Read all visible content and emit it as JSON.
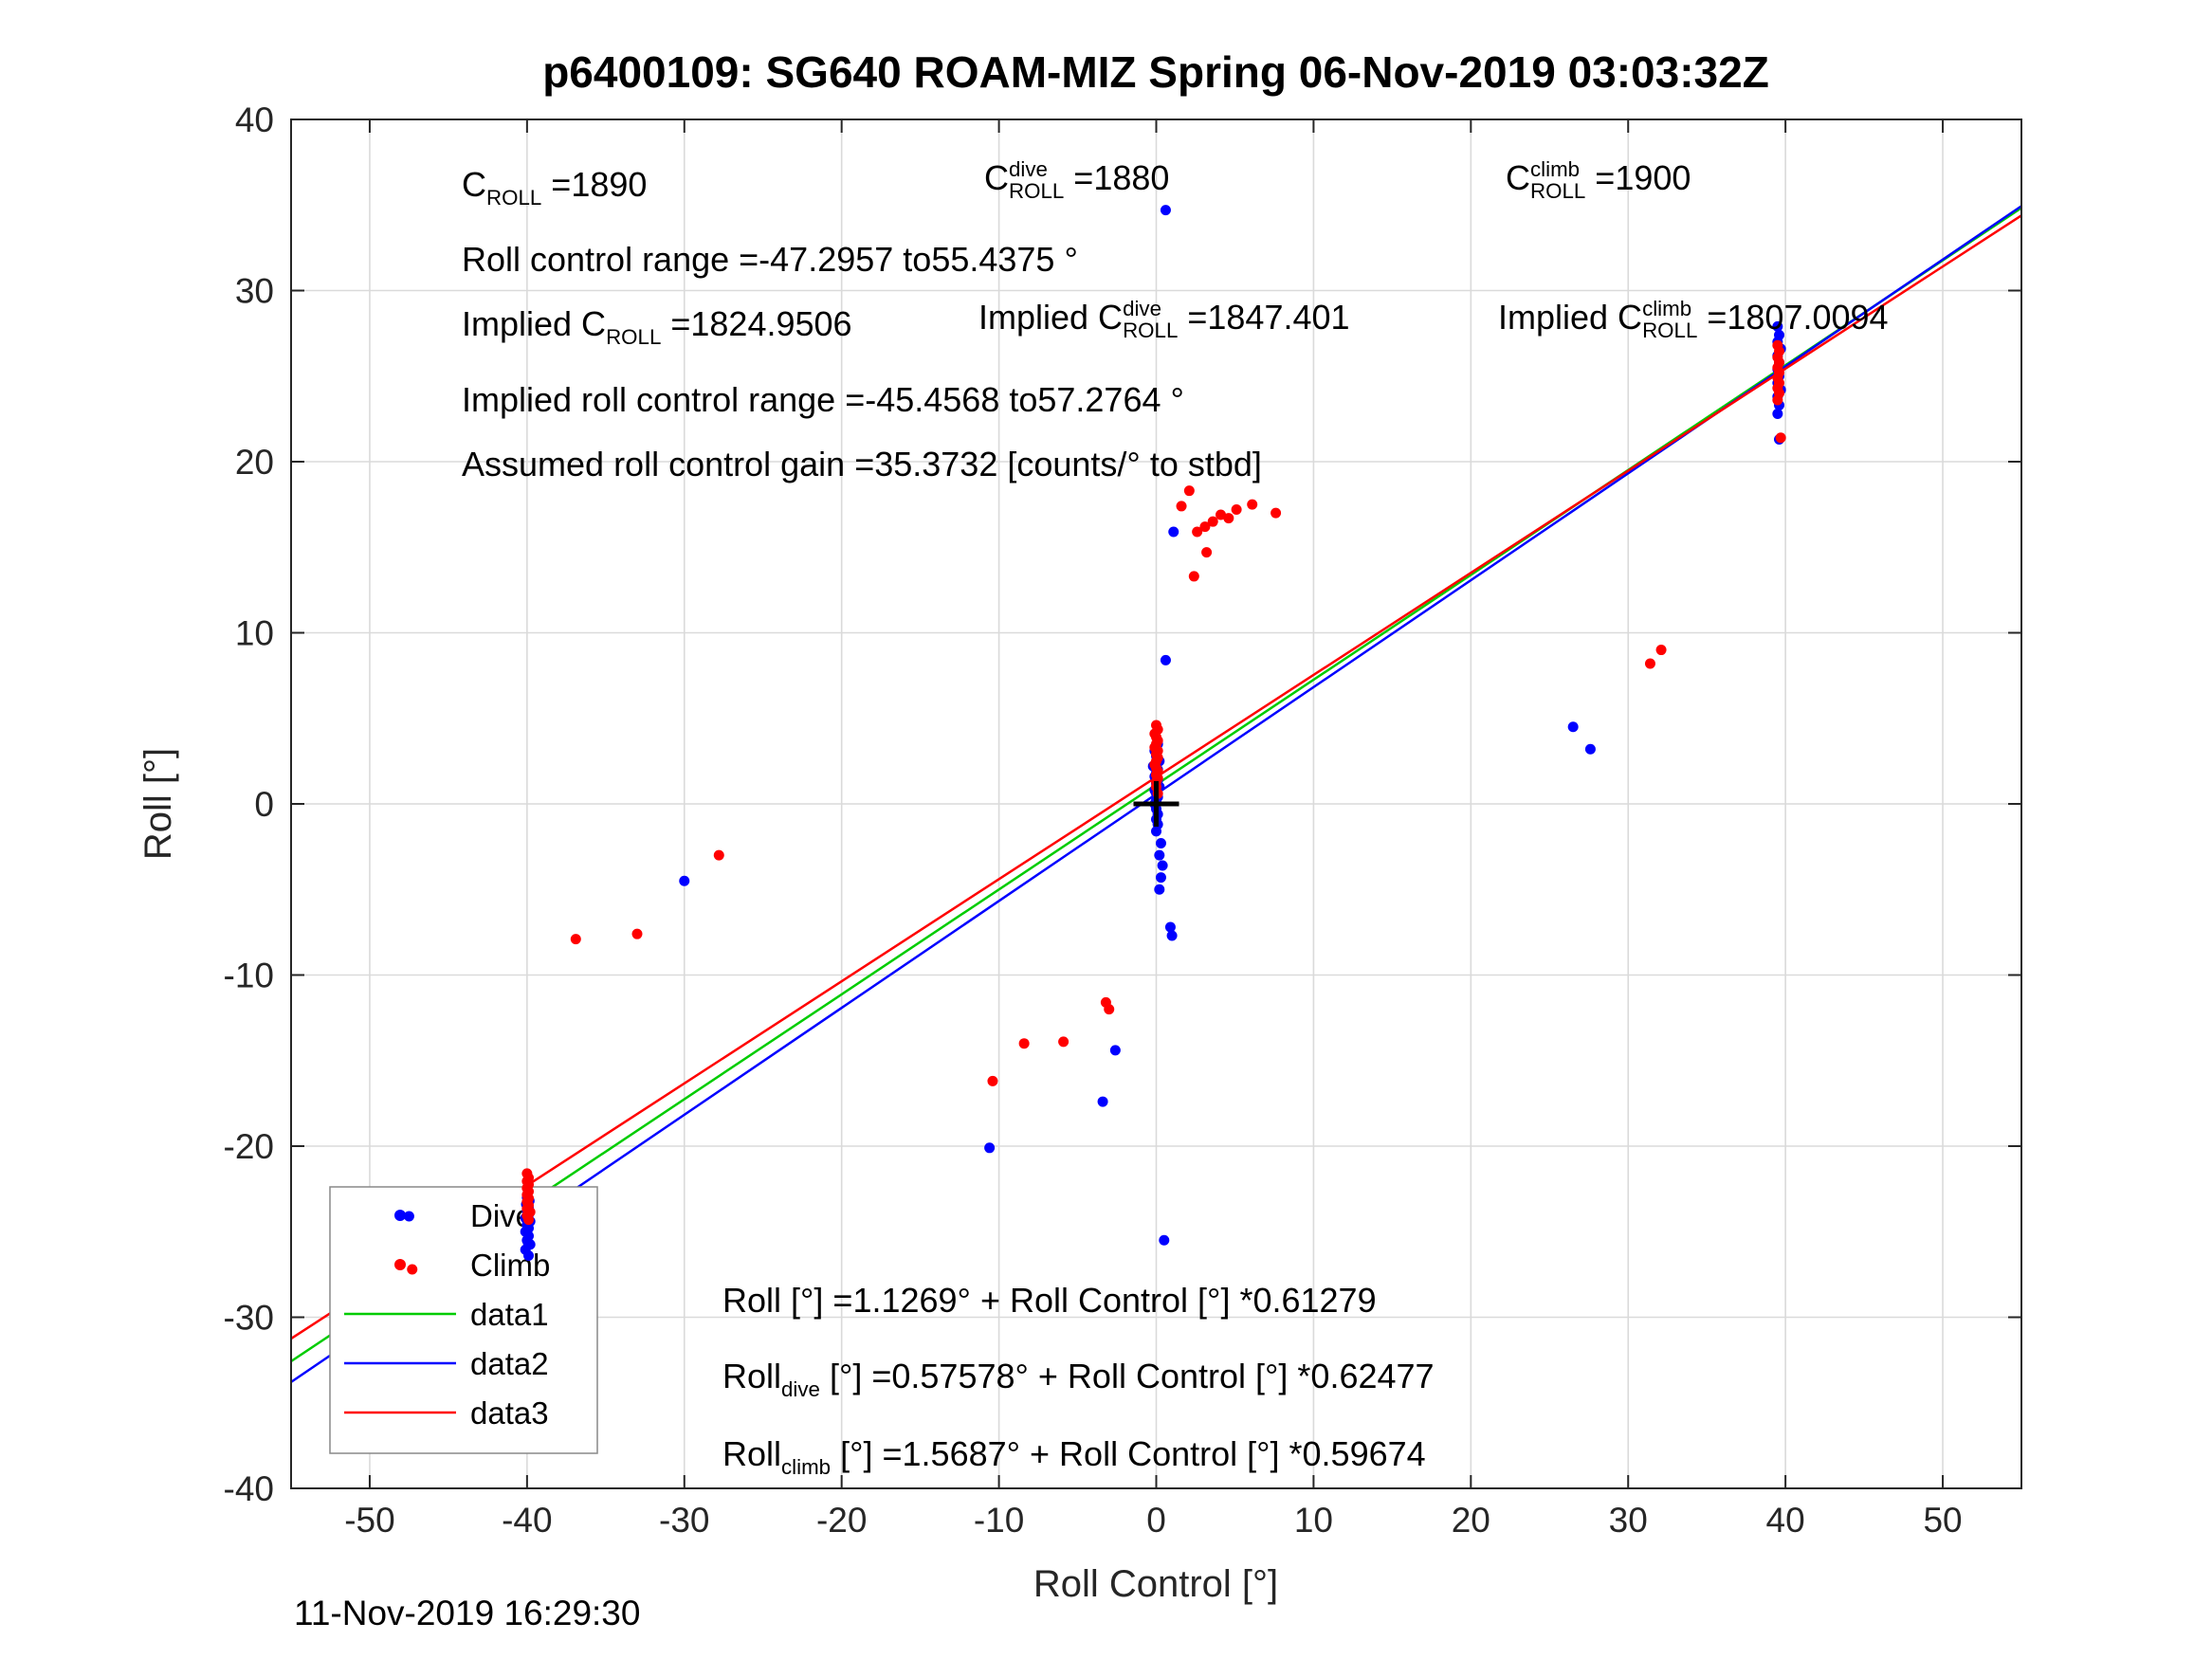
{
  "timestamp": "11-Nov-2019 16:29:30",
  "chart_data": {
    "type": "scatter",
    "title": "p6400109: SG640 ROAM-MIZ Spring 06-Nov-2019 03:03:32Z",
    "xlabel": "Roll Control [°]",
    "ylabel": "Roll [°]",
    "xlim": [
      -55,
      55
    ],
    "ylim": [
      -40,
      40
    ],
    "xticks": [
      -50,
      -40,
      -30,
      -20,
      -10,
      0,
      10,
      20,
      30,
      40,
      50
    ],
    "yticks": [
      -40,
      -30,
      -20,
      -10,
      0,
      10,
      20,
      30,
      40
    ],
    "grid": true,
    "legend_position": "southwest",
    "colors": {
      "dive": "#0000ff",
      "climb": "#ff0000",
      "data1": "#00cc00",
      "data2": "#0000ff",
      "data3": "#ff0000",
      "origin": "#000000"
    },
    "fit_lines": [
      {
        "name": "data1",
        "intercept": 1.1269,
        "slope": 0.61279,
        "color_key": "data1"
      },
      {
        "name": "data2",
        "intercept": 0.57578,
        "slope": 0.62477,
        "color_key": "data2"
      },
      {
        "name": "data3",
        "intercept": 1.5687,
        "slope": 0.59674,
        "color_key": "data3"
      }
    ],
    "origin_marker": {
      "x": 0,
      "y": 0,
      "shape": "plus"
    },
    "legend": {
      "entries": [
        {
          "label": "Dive",
          "type": "marker",
          "color_key": "dive"
        },
        {
          "label": "Climb",
          "type": "marker",
          "color_key": "climb"
        },
        {
          "label": "data1",
          "type": "line",
          "color_key": "data1"
        },
        {
          "label": "data2",
          "type": "line",
          "color_key": "data2"
        },
        {
          "label": "data3",
          "type": "line",
          "color_key": "data3"
        }
      ]
    },
    "series": [
      {
        "name": "Dive",
        "color_key": "dive",
        "points": [
          [
            -39.9,
            -26.4
          ],
          [
            -40.1,
            -26.05
          ],
          [
            -39.8,
            -25.75
          ],
          [
            -40.0,
            -25.5
          ],
          [
            -39.9,
            -25.25
          ],
          [
            -40.1,
            -25.0
          ],
          [
            -39.9,
            -24.8
          ],
          [
            -40.0,
            -24.6
          ],
          [
            -39.8,
            -24.4
          ],
          [
            -40.1,
            -24.2
          ],
          [
            -39.9,
            -24.0
          ],
          [
            -40.0,
            -23.8
          ],
          [
            -39.9,
            -23.6
          ],
          [
            -40.05,
            -23.4
          ],
          [
            -39.85,
            -23.2
          ],
          [
            -40.0,
            -23.0
          ],
          [
            -39.95,
            -25.6
          ],
          [
            -40.0,
            -24.9
          ],
          [
            -47.5,
            -24.1
          ],
          [
            -30.0,
            -4.5
          ],
          [
            0.1,
            3.5
          ],
          [
            -0.1,
            3.1
          ],
          [
            0.0,
            2.8
          ],
          [
            0.2,
            2.5
          ],
          [
            -0.2,
            2.2
          ],
          [
            0.1,
            2.0
          ],
          [
            0.0,
            1.8
          ],
          [
            -0.1,
            1.6
          ],
          [
            0.1,
            1.4
          ],
          [
            0.0,
            1.2
          ],
          [
            0.2,
            1.0
          ],
          [
            -0.1,
            0.8
          ],
          [
            0.0,
            0.6
          ],
          [
            0.1,
            0.4
          ],
          [
            0.0,
            0.2
          ],
          [
            -0.1,
            0.0
          ],
          [
            0.0,
            -0.3
          ],
          [
            0.1,
            -0.6
          ],
          [
            0.0,
            -0.9
          ],
          [
            0.1,
            -1.2
          ],
          [
            0.0,
            -1.6
          ],
          [
            0.3,
            -2.3
          ],
          [
            0.2,
            -3.0
          ],
          [
            0.4,
            -3.6
          ],
          [
            0.3,
            -4.3
          ],
          [
            0.2,
            -5.0
          ],
          [
            0.9,
            -7.2
          ],
          [
            1.0,
            -7.7
          ],
          [
            0.6,
            8.4
          ],
          [
            0.6,
            34.7
          ],
          [
            0.5,
            -25.5
          ],
          [
            1.1,
            15.9
          ],
          [
            -2.6,
            -14.4
          ],
          [
            -3.4,
            -17.4
          ],
          [
            -10.6,
            -20.1
          ],
          [
            26.5,
            4.5
          ],
          [
            27.6,
            3.2
          ],
          [
            39.5,
            27.9
          ],
          [
            39.6,
            27.4
          ],
          [
            39.5,
            27.0
          ],
          [
            39.7,
            26.6
          ],
          [
            39.5,
            26.2
          ],
          [
            39.6,
            25.8
          ],
          [
            39.5,
            25.4
          ],
          [
            39.6,
            25.0
          ],
          [
            39.5,
            24.6
          ],
          [
            39.7,
            24.2
          ],
          [
            39.5,
            23.8
          ],
          [
            39.6,
            23.3
          ],
          [
            39.5,
            22.8
          ],
          [
            39.6,
            21.3
          ]
        ]
      },
      {
        "name": "Climb",
        "color_key": "climb",
        "points": [
          [
            -39.9,
            -24.3
          ],
          [
            -40.0,
            -24.05
          ],
          [
            -39.8,
            -23.85
          ],
          [
            -40.0,
            -23.65
          ],
          [
            -39.9,
            -23.45
          ],
          [
            -40.0,
            -23.25
          ],
          [
            -39.9,
            -23.05
          ],
          [
            -40.0,
            -22.85
          ],
          [
            -39.9,
            -22.65
          ],
          [
            -40.0,
            -22.45
          ],
          [
            -39.9,
            -22.25
          ],
          [
            -40.0,
            -22.05
          ],
          [
            -39.9,
            -21.85
          ],
          [
            -40.0,
            -21.6
          ],
          [
            -47.3,
            -27.2
          ],
          [
            -36.9,
            -7.9
          ],
          [
            -33.0,
            -7.6
          ],
          [
            -27.8,
            -3.0
          ],
          [
            -10.4,
            -16.2
          ],
          [
            -8.4,
            -14.0
          ],
          [
            -5.9,
            -13.9
          ],
          [
            -3.0,
            -12.0
          ],
          [
            -3.2,
            -11.6
          ],
          [
            0.0,
            4.6
          ],
          [
            0.1,
            4.35
          ],
          [
            -0.1,
            4.1
          ],
          [
            0.0,
            3.9
          ],
          [
            0.1,
            3.7
          ],
          [
            0.0,
            3.5
          ],
          [
            -0.1,
            3.3
          ],
          [
            0.1,
            3.1
          ],
          [
            0.0,
            2.9
          ],
          [
            0.1,
            2.7
          ],
          [
            0.0,
            2.5
          ],
          [
            -0.1,
            2.3
          ],
          [
            0.0,
            2.1
          ],
          [
            0.1,
            1.9
          ],
          [
            0.0,
            1.7
          ],
          [
            0.1,
            1.5
          ],
          [
            0.0,
            1.3
          ],
          [
            0.0,
            1.0
          ],
          [
            0.1,
            0.6
          ],
          [
            1.6,
            17.4
          ],
          [
            2.1,
            18.3
          ],
          [
            2.6,
            15.9
          ],
          [
            3.1,
            16.2
          ],
          [
            3.6,
            16.5
          ],
          [
            4.1,
            16.9
          ],
          [
            4.6,
            16.7
          ],
          [
            5.1,
            17.2
          ],
          [
            6.1,
            17.5
          ],
          [
            7.6,
            17.0
          ],
          [
            3.2,
            14.7
          ],
          [
            2.4,
            13.3
          ],
          [
            31.4,
            8.2
          ],
          [
            32.1,
            9.0
          ],
          [
            39.5,
            26.8
          ],
          [
            39.6,
            26.45
          ],
          [
            39.5,
            26.1
          ],
          [
            39.6,
            25.8
          ],
          [
            39.5,
            25.5
          ],
          [
            39.6,
            25.2
          ],
          [
            39.5,
            24.9
          ],
          [
            39.6,
            24.6
          ],
          [
            39.5,
            24.3
          ],
          [
            39.6,
            24.0
          ],
          [
            39.5,
            23.6
          ],
          [
            39.7,
            21.4
          ]
        ]
      }
    ],
    "annotations": [
      {
        "name": "annotation-c-roll",
        "x": 487,
        "y": 174,
        "parts": [
          {
            "t": "C"
          },
          {
            "sub": "ROLL"
          },
          {
            "t": " =1890"
          }
        ]
      },
      {
        "name": "annotation-c-roll-dive",
        "x": 1038,
        "y": 167,
        "parts": [
          {
            "t": "C"
          },
          {
            "sub": "ROLL",
            "sup": "dive"
          },
          {
            "t": " =1880"
          }
        ]
      },
      {
        "name": "annotation-c-roll-climb",
        "x": 1588,
        "y": 167,
        "parts": [
          {
            "t": "C"
          },
          {
            "sub": "ROLL",
            "sup": "climb"
          },
          {
            "t": " =1900"
          }
        ]
      },
      {
        "name": "annotation-roll-control-range",
        "x": 487,
        "y": 253,
        "parts": [
          {
            "t": "Roll control range =-47.2957 to55.4375 °"
          }
        ]
      },
      {
        "name": "annotation-implied-c-roll",
        "x": 487,
        "y": 321,
        "parts": [
          {
            "t": "Implied C"
          },
          {
            "sub": "ROLL"
          },
          {
            "t": " =1824.9506"
          }
        ]
      },
      {
        "name": "annotation-implied-c-roll-dive",
        "x": 1032,
        "y": 314,
        "parts": [
          {
            "t": "Implied C"
          },
          {
            "sub": "ROLL",
            "sup": "dive"
          },
          {
            "t": " =1847.401"
          }
        ]
      },
      {
        "name": "annotation-implied-c-roll-climb",
        "x": 1580,
        "y": 314,
        "parts": [
          {
            "t": "Implied C"
          },
          {
            "sub": "ROLL",
            "sup": "climb"
          },
          {
            "t": " =1807.0094"
          }
        ]
      },
      {
        "name": "annotation-implied-roll-control-range",
        "x": 487,
        "y": 401,
        "parts": [
          {
            "t": "Implied roll control range =-45.4568 to57.2764 °"
          }
        ]
      },
      {
        "name": "annotation-assumed-gain",
        "x": 487,
        "y": 469,
        "parts": [
          {
            "t": "Assumed roll control gain =35.3732 [counts/° to stbd]"
          }
        ]
      }
    ],
    "equations": [
      {
        "name": "equation-roll-fit",
        "x": 762,
        "y": 1351,
        "parts": [
          {
            "t": "Roll [°] =1.1269° + Roll Control [°] *0.61279"
          }
        ]
      },
      {
        "name": "equation-roll-dive-fit",
        "x": 762,
        "y": 1431,
        "parts": [
          {
            "t": "Roll"
          },
          {
            "sub": "dive"
          },
          {
            "t": " [°] =0.57578° + Roll Control [°] *0.62477"
          }
        ]
      },
      {
        "name": "equation-roll-climb-fit",
        "x": 762,
        "y": 1513,
        "parts": [
          {
            "t": "Roll"
          },
          {
            "sub": "climb"
          },
          {
            "t": " [°] =1.5687° + Roll Control [°] *0.59674"
          }
        ]
      }
    ]
  }
}
